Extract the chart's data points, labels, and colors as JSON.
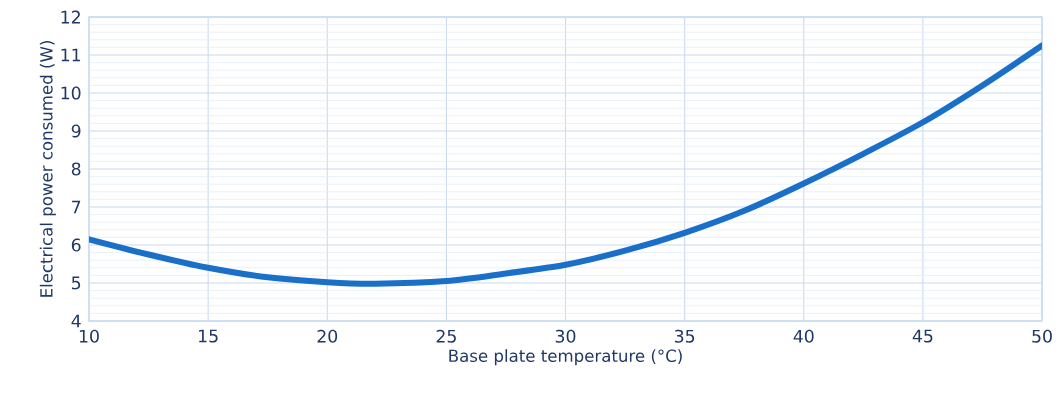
{
  "chart_data": {
    "type": "line",
    "xlabel": "Base plate temperature (°C)",
    "ylabel": "Electrical power consumed (W)",
    "x": [
      10,
      12.5,
      15,
      17.5,
      20,
      22,
      25,
      27.5,
      30,
      32.5,
      35,
      37.5,
      40,
      42.5,
      45,
      47.5,
      50
    ],
    "series": [
      {
        "color": "#1a6fc9",
        "values": [
          6.15,
          5.75,
          5.4,
          5.15,
          5.02,
          4.98,
          5.05,
          5.25,
          5.48,
          5.85,
          6.32,
          6.9,
          7.62,
          8.4,
          9.23,
          10.2,
          11.25
        ]
      }
    ],
    "xlim": [
      10,
      50
    ],
    "ylim": [
      4,
      12
    ],
    "xticks": [
      10,
      15,
      20,
      25,
      30,
      35,
      40,
      45,
      50
    ],
    "yticks": [
      4,
      5,
      6,
      7,
      8,
      9,
      10,
      11,
      12
    ],
    "grid": true,
    "marker": "none",
    "line_style": "solid",
    "legend": false
  }
}
